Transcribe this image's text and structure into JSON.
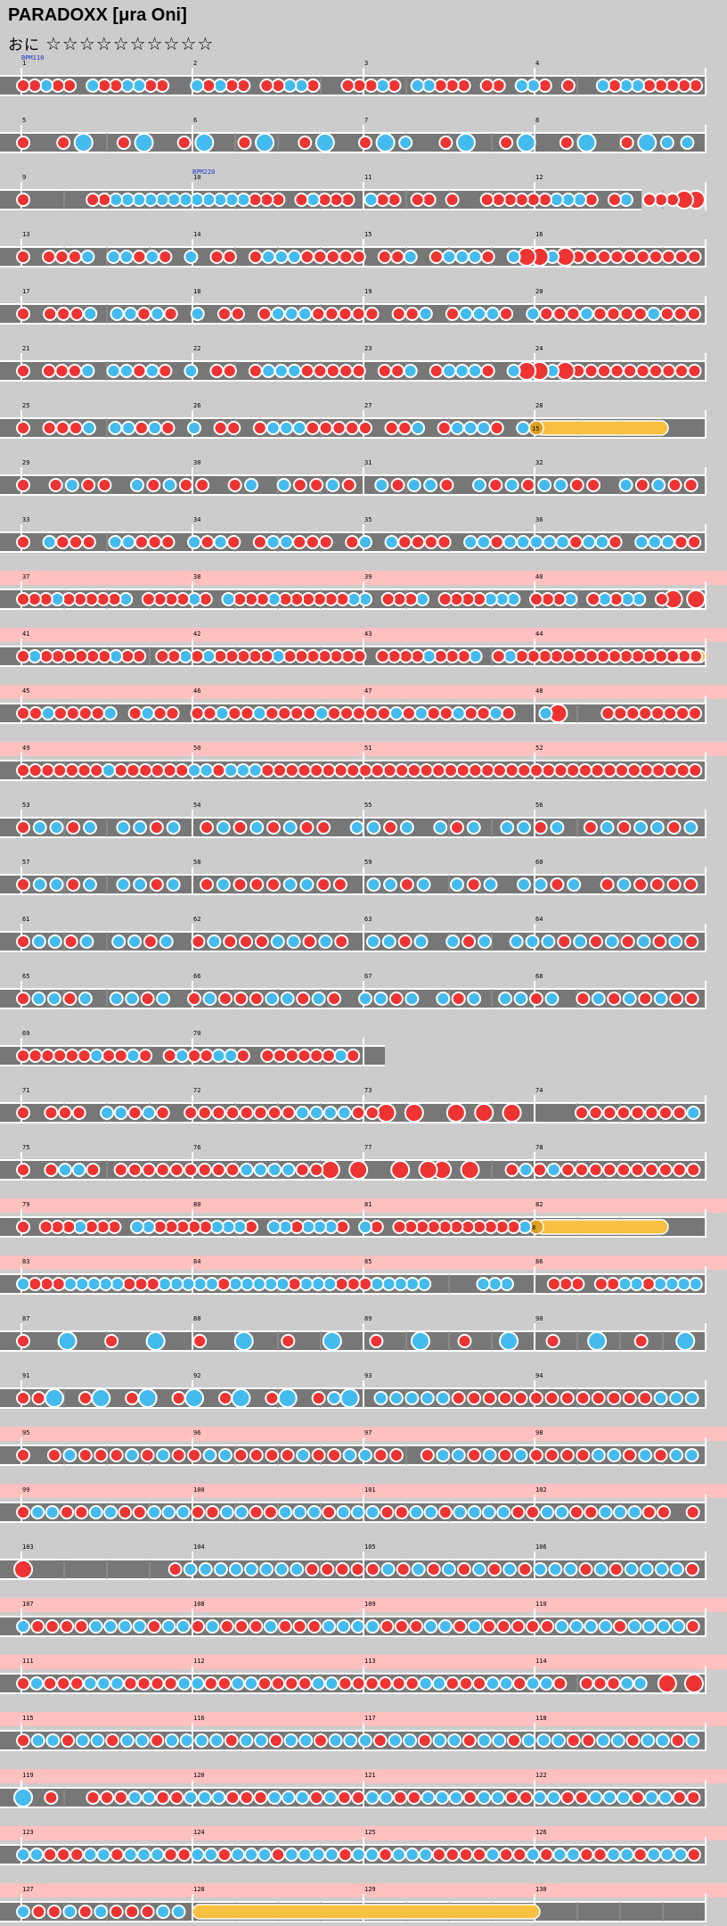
{
  "header": {
    "song_title": "PARADOXX [μra Oni]",
    "course_label": "おに",
    "stars": "☆☆☆☆☆☆☆☆☆☆"
  },
  "colors": {
    "background": "#cccccc",
    "lane": "#777777",
    "lane_border": "#ffffff",
    "gogo_band": "#ffc0c0",
    "don": "#ee3333",
    "ka": "#44bbee",
    "roll": "#f8c040",
    "balloon": "#f8c040",
    "bpm_text": "#2233cc"
  },
  "bpm_markers": [
    {
      "measure": 1,
      "text": "BPM110"
    },
    {
      "measure": 10,
      "text": "BPM220"
    }
  ],
  "balloons": [
    {
      "measure": 28,
      "count": "15"
    },
    {
      "measure": 82,
      "count": "8"
    }
  ],
  "measure_numbers": [
    "1",
    "2",
    "3",
    "4",
    "5",
    "6",
    "7",
    "8",
    "9",
    "10",
    "11",
    "12",
    "13",
    "14",
    "15",
    "16",
    "17",
    "18",
    "19",
    "20",
    "21",
    "22",
    "23",
    "24",
    "25",
    "26",
    "27",
    "28",
    "29",
    "30",
    "31",
    "32",
    "33",
    "34",
    "35",
    "36",
    "37",
    "38",
    "39",
    "40",
    "41",
    "42",
    "43",
    "44",
    "45",
    "46",
    "47",
    "48",
    "49",
    "50",
    "51",
    "52",
    "53",
    "54",
    "55",
    "56",
    "57",
    "58",
    "59",
    "60",
    "61",
    "62",
    "63",
    "64",
    "65",
    "66",
    "67",
    "68",
    "69",
    "70",
    "71",
    "72",
    "73",
    "74",
    "75",
    "76",
    "77",
    "78",
    "79",
    "80",
    "81",
    "82",
    "83",
    "84",
    "85",
    "86",
    "87",
    "88",
    "89",
    "90",
    "91",
    "92",
    "93",
    "94",
    "95",
    "96",
    "97",
    "98",
    "99",
    "100",
    "101",
    "102",
    "103",
    "104",
    "105",
    "106",
    "107",
    "108",
    "109",
    "110",
    "111",
    "112",
    "113",
    "114",
    "115",
    "116",
    "117",
    "118",
    "119",
    "120",
    "121",
    "122",
    "123",
    "124",
    "125",
    "126",
    "127",
    "128",
    "129",
    "130"
  ],
  "chart_data": {
    "type": "taiko-chart",
    "title": "PARADOXX [μra Oni]",
    "difficulty_stars": 10,
    "total_measures": 130,
    "rows": [
      {
        "measures": [
          "1",
          "2",
          "3",
          "4"
        ],
        "gogo": false,
        "pattern": "ddkdd.kddkkdd..kdkdd.ddkkd..dddkd.kkddd.dd.kkd.d..kdkkddddd"
      },
      {
        "measures": [
          "5",
          "6",
          "7",
          "8"
        ],
        "gogo": false,
        "pattern": "d.dK.dK.dK.dK.dK.dKk.dK.dK.dK.dKkk"
      },
      {
        "measures": [
          "9",
          "10",
          "11",
          "12"
        ],
        "gogo": false,
        "pattern": "d.....ddkkkkkkkkkkkkddd.dkddd.kdd.dd.d..ddddddkkkd.dk.dddDD",
        "short": true
      },
      {
        "measures": [
          "13",
          "14",
          "15",
          "16"
        ],
        "gogo": false,
        "pattern": "d.dddk.kkdkd.k.dd.dkkkddddd.ddk.dkkkd.kDDkDdddddddddd"
      },
      {
        "measures": [
          "17",
          "18",
          "19",
          "20"
        ],
        "gogo": false,
        "pattern": "d.dddk.kkdkd.k.dd.dkkkddddd.ddk.dkkkd.kdddkddddkddd"
      },
      {
        "measures": [
          "21",
          "22",
          "23",
          "24"
        ],
        "gogo": false,
        "pattern": "d.dddk.kkdkd.k.dd.dkkkddddd.ddk.dkkkd.kDDkDdddddddddd"
      },
      {
        "measures": [
          "25",
          "26",
          "27",
          "28"
        ],
        "gogo": false,
        "pattern": "d.dddk.kkdkd.k.dd.dkkkddddd.ddk.dkkkd.k",
        "balloon_at": 28
      },
      {
        "measures": [
          "29",
          "30",
          "31",
          "32"
        ],
        "gogo": false,
        "pattern": "d.dkdd.kdkdd.dk.kddkd.kdkkd.kdkdkkdd.kdkdd"
      },
      {
        "measures": [
          "33",
          "34",
          "35",
          "36"
        ],
        "gogo": false,
        "pattern": "d.kddd.kkddd.kdkd.dkkddd.dk.kdddd.kkdkkkkkdkkd.kkkdd"
      },
      {
        "measures": [
          "37",
          "38",
          "39",
          "40"
        ],
        "gogo": true,
        "pattern": "dddkdddddk.ddddkd.kdddkddddddkk.dddk.ddddkkk.dddk.dkdkk.dD.D"
      },
      {
        "measures": [
          "41",
          "42",
          "43",
          "44"
        ],
        "gogo": true,
        "pattern": "dkddddddkdd.ddkdkdddddkddddddd.ddddkdddk.dkdddddddddddddddd",
        "roll_tail": 44
      },
      {
        "measures": [
          "45",
          "46",
          "47",
          "48"
        ],
        "gogo": true,
        "pattern": "ddkddddk.dkdd.ddkddkddddkdddddkdkddkddkd..kD...dddddddd"
      },
      {
        "measures": [
          "49",
          "50",
          "51",
          "52"
        ],
        "gogo": true,
        "pattern": "dddddddkddddddkkdkkkdddddddddddddddddddddddddddddddddddd"
      },
      {
        "measures": [
          "53",
          "54",
          "55",
          "56"
        ],
        "gogo": false,
        "pattern": "dkkdk.kkdk.dkdkdkdd.kkdk.kdk.kkdk.dkdkkdk"
      },
      {
        "measures": [
          "57",
          "58",
          "59",
          "60"
        ],
        "gogo": false,
        "pattern": "dkkdk.kkdk.dkdddkkdd.kkdk.kdk.kkdk.dkdddd"
      },
      {
        "measures": [
          "61",
          "62",
          "63",
          "64"
        ],
        "gogo": false,
        "pattern": "dkkdk.kkdk.dkdddkkdkd.kkdk.kdk.kkkdkdkdkdkd"
      },
      {
        "measures": [
          "65",
          "66",
          "67",
          "68"
        ],
        "gogo": false,
        "pattern": "dkkdk.kkdk.dkdddkkdkd.kkdk.kdk.kkdk.dkdkdkdd"
      },
      {
        "measures": [
          "69",
          "70"
        ],
        "gogo": false,
        "pattern": "ddddddkddkd.dkddkkd.ddddddkd",
        "short": true
      },
      {
        "measures": [
          "71",
          "72",
          "73",
          "74"
        ],
        "gogo": false,
        "pattern": "d.ddd.kkdkd.ddddddddkkkkddD.D..D.D.D....ddddddddk"
      },
      {
        "measures": [
          "75",
          "76",
          "77",
          "78"
        ],
        "gogo": false,
        "pattern": "d.dkkd.dddddddddkkkkddD.D..D.DD.D..dkdkdddddddddd"
      },
      {
        "measures": [
          "79",
          "80",
          "81",
          "82"
        ],
        "gogo": true,
        "pattern": "d.dddkddd.kkdddddkkkd.kkdkkkd.kd.dddddddddddk",
        "balloon_at": 82
      },
      {
        "measures": [
          "83",
          "84",
          "85",
          "86"
        ],
        "gogo": true,
        "pattern": "kdddkkkkkdddkkkkkdkkkkkdkkkdddkkkkk....kkk...ddd.ddkkdkkkk"
      },
      {
        "measures": [
          "87",
          "88",
          "89",
          "90"
        ],
        "gogo": false,
        "pattern": "d.K.d.K.d.K.d.K.d.K.d.K.d.K.d.K"
      },
      {
        "measures": [
          "91",
          "92",
          "93",
          "94"
        ],
        "gogo": false,
        "pattern": "ddK.dK.dK.dK.dK.dK.dkK.kkkkkdddddddddddddkkk"
      },
      {
        "measures": [
          "95",
          "96",
          "97",
          "98"
        ],
        "gogo": true,
        "pattern": "d.dkdddkdkddkkddddkddkkdd.dkkdkdkddddkkdkdkk"
      },
      {
        "measures": [
          "99",
          "100",
          "101",
          "102"
        ],
        "gogo": true,
        "pattern": "dkkddkkddkkkddkkddkkkdkkkddkkdkkkkddkkddkkkdd.d"
      },
      {
        "measures": [
          "103",
          "104",
          "105",
          "106"
        ],
        "gogo": false,
        "pattern": "D.........dkkkkkkkkdddddkdkdkdkdkdkkkdkdkkkkd"
      },
      {
        "measures": [
          "107",
          "108",
          "109",
          "110"
        ],
        "gogo": true,
        "pattern": "kddddkkkkdkkdkdddkdddkkkkdddkkdkdddddkkkkdkkkkd"
      },
      {
        "measures": [
          "111",
          "112",
          "113",
          "114"
        ],
        "gogo": true,
        "pattern": "dkdddkkkddddkkddkkddddkkddddddkkdddkkdkkd.dddkk.D.D"
      },
      {
        "measures": [
          "115",
          "116",
          "117",
          "118"
        ],
        "gogo": true,
        "pattern": "dkkdkkdkkdkkkkdkkdkkdkkkdkkdkkdkkdkkkddkkdkkdk"
      },
      {
        "measures": [
          "119",
          "120",
          "121",
          "122"
        ],
        "gogo": true,
        "pattern": "K.d..dddkkddkkkdddkkkdkddkkddkkkdkkddkkddkkkdkkdd"
      },
      {
        "measures": [
          "123",
          "124",
          "125",
          "126"
        ],
        "gogo": true,
        "pattern": "kkdddkkdkkkddkkdkkkdkkkkdkkdkkkddddkddkdkkddkkdkkkd"
      },
      {
        "measures": [
          "127",
          "128",
          "129",
          "130"
        ],
        "gogo": true,
        "pattern": "kddkdkdddkk",
        "roll_from": 128
      }
    ]
  }
}
